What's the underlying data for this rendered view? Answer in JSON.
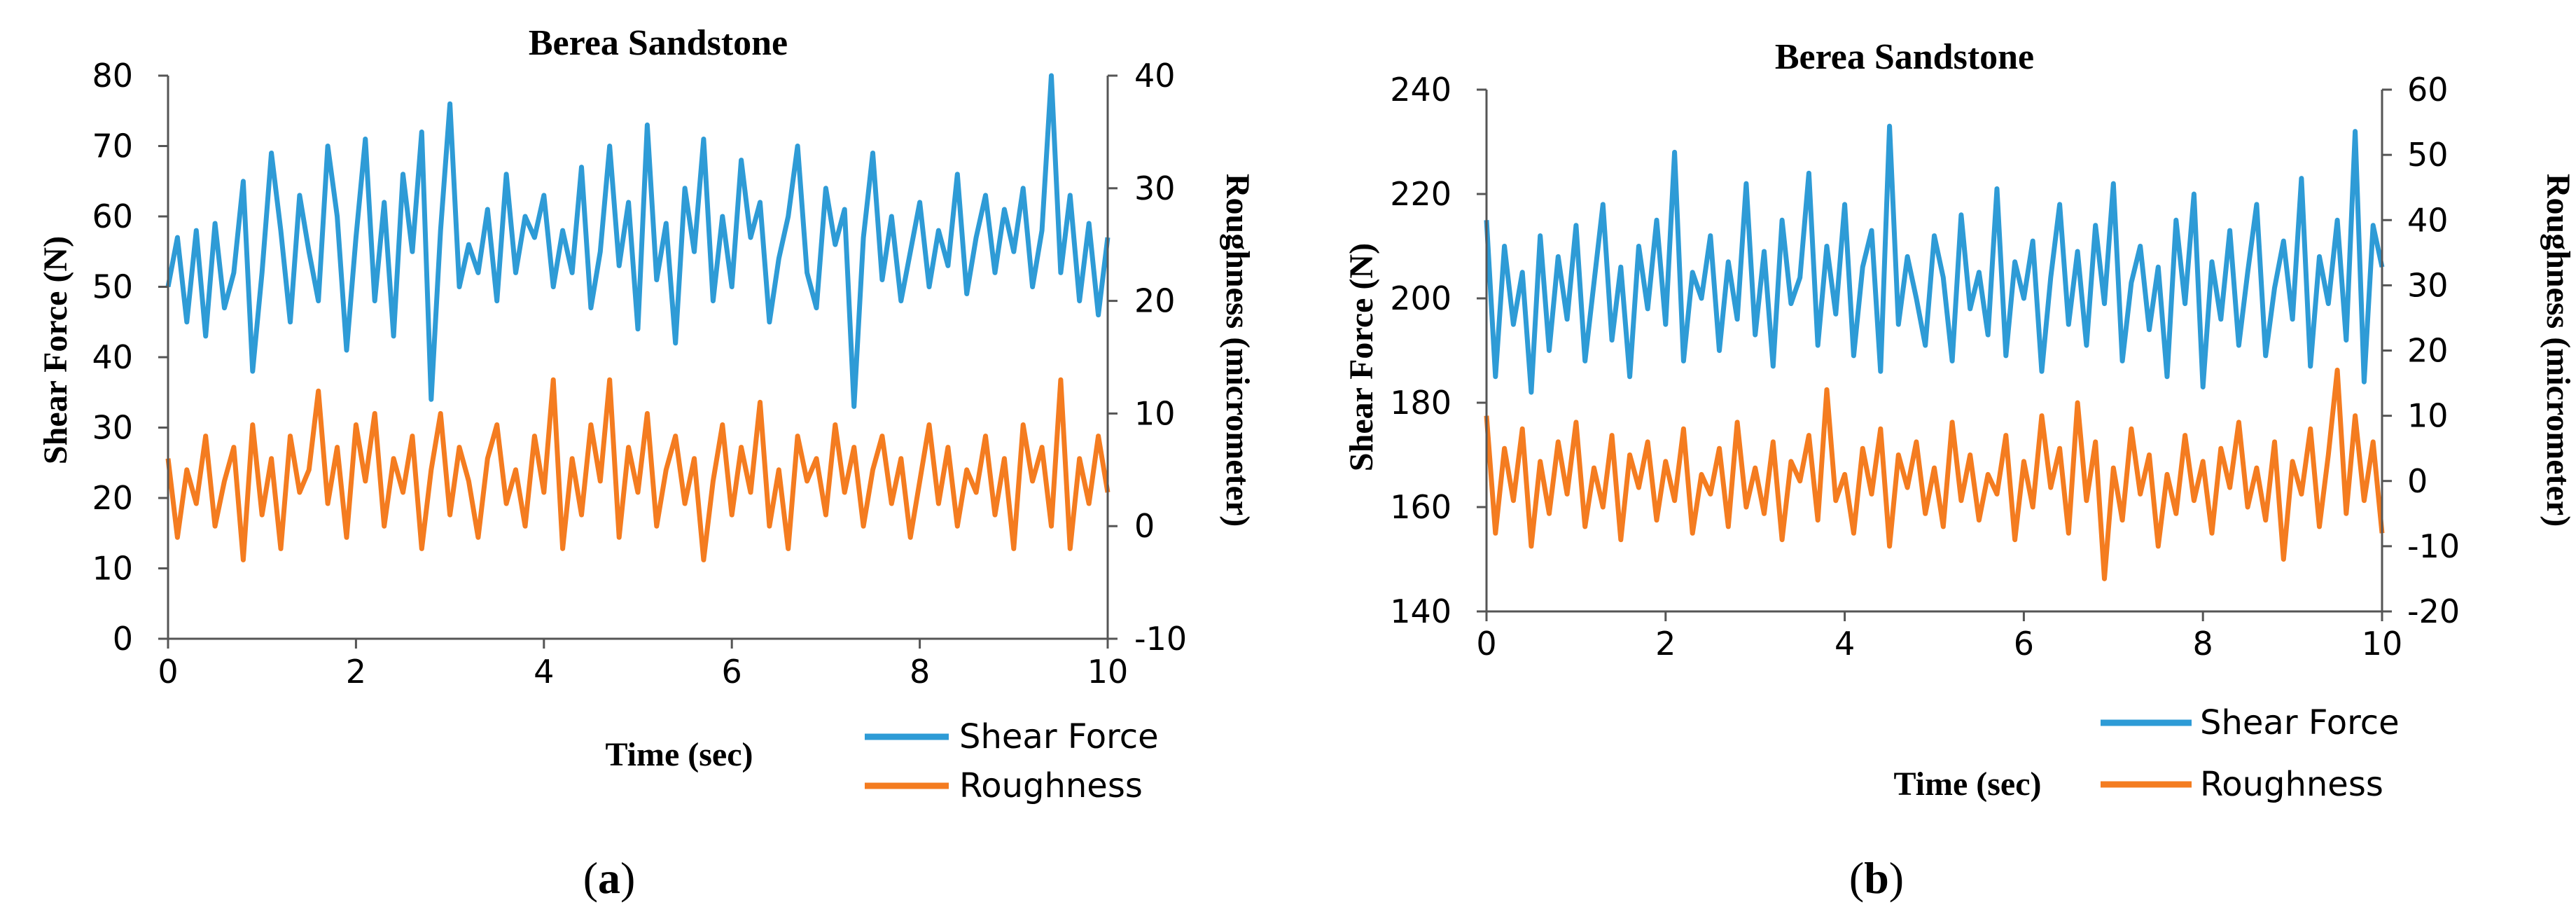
{
  "colors": {
    "shear": "#2E9BD6",
    "rough": "#F47C20",
    "axis": "#555555"
  },
  "chart_data": [
    {
      "type": "line",
      "panel": "a",
      "title": "Berea Sandstone",
      "xlabel": "Time (sec)",
      "ylabel": "Shear Force (N)",
      "y2label": "Roughness (micrometer)",
      "xlim": [
        0,
        10
      ],
      "ylim": [
        0,
        80
      ],
      "y2lim": [
        -10,
        40
      ],
      "xticks": [
        0,
        2,
        4,
        6,
        8,
        10
      ],
      "yticks": [
        0,
        10,
        20,
        30,
        40,
        50,
        60,
        70,
        80
      ],
      "y2ticks": [
        -10,
        0,
        10,
        20,
        30,
        40
      ],
      "legend": [
        "Shear Force",
        "Roughness"
      ],
      "legend_position": "below-right",
      "caption": "a",
      "series": [
        {
          "name": "Shear Force",
          "axis": "left",
          "x": [
            0,
            0.1,
            0.2,
            0.3,
            0.4,
            0.5,
            0.6,
            0.7,
            0.8,
            0.9,
            1,
            1.1,
            1.2,
            1.3,
            1.4,
            1.5,
            1.6,
            1.7,
            1.8,
            1.9,
            2,
            2.1,
            2.2,
            2.3,
            2.4,
            2.5,
            2.6,
            2.7,
            2.8,
            2.9,
            3,
            3.1,
            3.2,
            3.3,
            3.4,
            3.5,
            3.6,
            3.7,
            3.8,
            3.9,
            4,
            4.1,
            4.2,
            4.3,
            4.4,
            4.5,
            4.6,
            4.7,
            4.8,
            4.9,
            5,
            5.1,
            5.2,
            5.3,
            5.4,
            5.5,
            5.6,
            5.7,
            5.8,
            5.9,
            6,
            6.1,
            6.2,
            6.3,
            6.4,
            6.5,
            6.6,
            6.7,
            6.8,
            6.9,
            7,
            7.1,
            7.2,
            7.3,
            7.4,
            7.5,
            7.6,
            7.7,
            7.8,
            7.9,
            8,
            8.1,
            8.2,
            8.3,
            8.4,
            8.5,
            8.6,
            8.7,
            8.8,
            8.9,
            9,
            9.1,
            9.2,
            9.3,
            9.4,
            9.5,
            9.6,
            9.7,
            9.8,
            9.9,
            10
          ],
          "values": [
            50,
            57,
            45,
            58,
            43,
            59,
            47,
            52,
            65,
            38,
            52,
            69,
            58,
            45,
            63,
            55,
            48,
            70,
            60,
            41,
            57,
            71,
            48,
            62,
            43,
            66,
            55,
            72,
            34,
            58,
            76,
            50,
            56,
            52,
            61,
            48,
            66,
            52,
            60,
            57,
            63,
            50,
            58,
            52,
            67,
            47,
            55,
            70,
            53,
            62,
            44,
            73,
            51,
            59,
            42,
            64,
            55,
            71,
            48,
            60,
            50,
            68,
            57,
            62,
            45,
            54,
            60,
            70,
            52,
            47,
            64,
            56,
            61,
            33,
            57,
            69,
            51,
            60,
            48,
            55,
            62,
            50,
            58,
            53,
            66,
            49,
            57,
            63,
            52,
            61,
            55,
            64,
            50,
            58,
            80,
            52,
            63,
            48,
            59,
            46,
            57
          ]
        },
        {
          "name": "Roughness",
          "axis": "right",
          "x": [
            0,
            0.1,
            0.2,
            0.3,
            0.4,
            0.5,
            0.6,
            0.7,
            0.8,
            0.9,
            1,
            1.1,
            1.2,
            1.3,
            1.4,
            1.5,
            1.6,
            1.7,
            1.8,
            1.9,
            2,
            2.1,
            2.2,
            2.3,
            2.4,
            2.5,
            2.6,
            2.7,
            2.8,
            2.9,
            3,
            3.1,
            3.2,
            3.3,
            3.4,
            3.5,
            3.6,
            3.7,
            3.8,
            3.9,
            4,
            4.1,
            4.2,
            4.3,
            4.4,
            4.5,
            4.6,
            4.7,
            4.8,
            4.9,
            5,
            5.1,
            5.2,
            5.3,
            5.4,
            5.5,
            5.6,
            5.7,
            5.8,
            5.9,
            6,
            6.1,
            6.2,
            6.3,
            6.4,
            6.5,
            6.6,
            6.7,
            6.8,
            6.9,
            7,
            7.1,
            7.2,
            7.3,
            7.4,
            7.5,
            7.6,
            7.7,
            7.8,
            7.9,
            8,
            8.1,
            8.2,
            8.3,
            8.4,
            8.5,
            8.6,
            8.7,
            8.8,
            8.9,
            9,
            9.1,
            9.2,
            9.3,
            9.4,
            9.5,
            9.6,
            9.7,
            9.8,
            9.9,
            10
          ],
          "values": [
            6,
            -1,
            5,
            2,
            8,
            0,
            4,
            7,
            -3,
            9,
            1,
            6,
            -2,
            8,
            3,
            5,
            12,
            2,
            7,
            -1,
            9,
            4,
            10,
            0,
            6,
            3,
            8,
            -2,
            5,
            10,
            1,
            7,
            4,
            -1,
            6,
            9,
            2,
            5,
            0,
            8,
            3,
            13,
            -2,
            6,
            1,
            9,
            4,
            13,
            -1,
            7,
            3,
            10,
            0,
            5,
            8,
            2,
            6,
            -3,
            4,
            9,
            1,
            7,
            3,
            11,
            0,
            5,
            -2,
            8,
            4,
            6,
            1,
            9,
            3,
            7,
            0,
            5,
            8,
            2,
            6,
            -1,
            4,
            9,
            2,
            7,
            0,
            5,
            3,
            8,
            1,
            6,
            -2,
            9,
            4,
            7,
            0,
            13,
            -2,
            6,
            2,
            8,
            3
          ]
        }
      ]
    },
    {
      "type": "line",
      "panel": "b",
      "title": "Berea Sandstone",
      "xlabel": "Time (sec)",
      "ylabel": "Shear Force (N)",
      "y2label": "Roughness (micrometer)",
      "xlim": [
        0,
        10
      ],
      "ylim": [
        140,
        240
      ],
      "y2lim": [
        -20,
        60
      ],
      "xticks": [
        0,
        2,
        4,
        6,
        8,
        10
      ],
      "yticks": [
        140,
        160,
        180,
        200,
        220,
        240
      ],
      "y2ticks": [
        -20,
        -10,
        0,
        10,
        20,
        30,
        40,
        50,
        60
      ],
      "legend": [
        "Shear Force",
        "Roughness"
      ],
      "legend_position": "below-right",
      "caption": "b",
      "series": [
        {
          "name": "Shear Force",
          "axis": "left",
          "x": [
            0,
            0.1,
            0.2,
            0.3,
            0.4,
            0.5,
            0.6,
            0.7,
            0.8,
            0.9,
            1,
            1.1,
            1.2,
            1.3,
            1.4,
            1.5,
            1.6,
            1.7,
            1.8,
            1.9,
            2,
            2.1,
            2.2,
            2.3,
            2.4,
            2.5,
            2.6,
            2.7,
            2.8,
            2.9,
            3,
            3.1,
            3.2,
            3.3,
            3.4,
            3.5,
            3.6,
            3.7,
            3.8,
            3.9,
            4,
            4.1,
            4.2,
            4.3,
            4.4,
            4.5,
            4.6,
            4.7,
            4.8,
            4.9,
            5,
            5.1,
            5.2,
            5.3,
            5.4,
            5.5,
            5.6,
            5.7,
            5.8,
            5.9,
            6,
            6.1,
            6.2,
            6.3,
            6.4,
            6.5,
            6.6,
            6.7,
            6.8,
            6.9,
            7,
            7.1,
            7.2,
            7.3,
            7.4,
            7.5,
            7.6,
            7.7,
            7.8,
            7.9,
            8,
            8.1,
            8.2,
            8.3,
            8.4,
            8.5,
            8.6,
            8.7,
            8.8,
            8.9,
            9,
            9.1,
            9.2,
            9.3,
            9.4,
            9.5,
            9.6,
            9.7,
            9.8,
            9.9,
            10
          ],
          "values": [
            215,
            185,
            210,
            195,
            205,
            182,
            212,
            190,
            208,
            196,
            214,
            188,
            203,
            218,
            192,
            206,
            185,
            210,
            198,
            215,
            195,
            228,
            188,
            205,
            200,
            212,
            190,
            207,
            196,
            222,
            193,
            209,
            187,
            215,
            199,
            204,
            224,
            191,
            210,
            197,
            218,
            189,
            206,
            213,
            186,
            233,
            195,
            208,
            200,
            191,
            212,
            204,
            188,
            216,
            198,
            205,
            193,
            221,
            189,
            207,
            200,
            211,
            186,
            204,
            218,
            195,
            209,
            191,
            214,
            199,
            222,
            188,
            203,
            210,
            194,
            206,
            185,
            215,
            199,
            220,
            183,
            207,
            196,
            213,
            191,
            205,
            218,
            189,
            202,
            211,
            196,
            223,
            187,
            208,
            199,
            215,
            192,
            232,
            184,
            214,
            206
          ]
        },
        {
          "name": "Roughness",
          "axis": "right",
          "x": [
            0,
            0.1,
            0.2,
            0.3,
            0.4,
            0.5,
            0.6,
            0.7,
            0.8,
            0.9,
            1,
            1.1,
            1.2,
            1.3,
            1.4,
            1.5,
            1.6,
            1.7,
            1.8,
            1.9,
            2,
            2.1,
            2.2,
            2.3,
            2.4,
            2.5,
            2.6,
            2.7,
            2.8,
            2.9,
            3,
            3.1,
            3.2,
            3.3,
            3.4,
            3.5,
            3.6,
            3.7,
            3.8,
            3.9,
            4,
            4.1,
            4.2,
            4.3,
            4.4,
            4.5,
            4.6,
            4.7,
            4.8,
            4.9,
            5,
            5.1,
            5.2,
            5.3,
            5.4,
            5.5,
            5.6,
            5.7,
            5.8,
            5.9,
            6,
            6.1,
            6.2,
            6.3,
            6.4,
            6.5,
            6.6,
            6.7,
            6.8,
            6.9,
            7,
            7.1,
            7.2,
            7.3,
            7.4,
            7.5,
            7.6,
            7.7,
            7.8,
            7.9,
            8,
            8.1,
            8.2,
            8.3,
            8.4,
            8.5,
            8.6,
            8.7,
            8.8,
            8.9,
            9,
            9.1,
            9.2,
            9.3,
            9.4,
            9.5,
            9.6,
            9.7,
            9.8,
            9.9,
            10
          ],
          "values": [
            10,
            -8,
            5,
            -3,
            8,
            -10,
            3,
            -5,
            6,
            -2,
            9,
            -7,
            2,
            -4,
            7,
            -9,
            4,
            -1,
            6,
            -6,
            3,
            -3,
            8,
            -8,
            1,
            -2,
            5,
            -7,
            9,
            -4,
            2,
            -5,
            6,
            -9,
            3,
            0,
            7,
            -6,
            14,
            -3,
            1,
            -8,
            5,
            -2,
            8,
            -10,
            4,
            -1,
            6,
            -5,
            2,
            -7,
            9,
            -3,
            4,
            -6,
            1,
            -2,
            7,
            -9,
            3,
            -4,
            10,
            -1,
            5,
            -8,
            12,
            -3,
            6,
            -15,
            2,
            -6,
            8,
            -2,
            4,
            -10,
            1,
            -5,
            7,
            -3,
            3,
            -8,
            5,
            -1,
            9,
            -4,
            2,
            -6,
            6,
            -12,
            3,
            -2,
            8,
            -7,
            4,
            17,
            -5,
            10,
            -3,
            6,
            -8
          ]
        }
      ]
    }
  ]
}
